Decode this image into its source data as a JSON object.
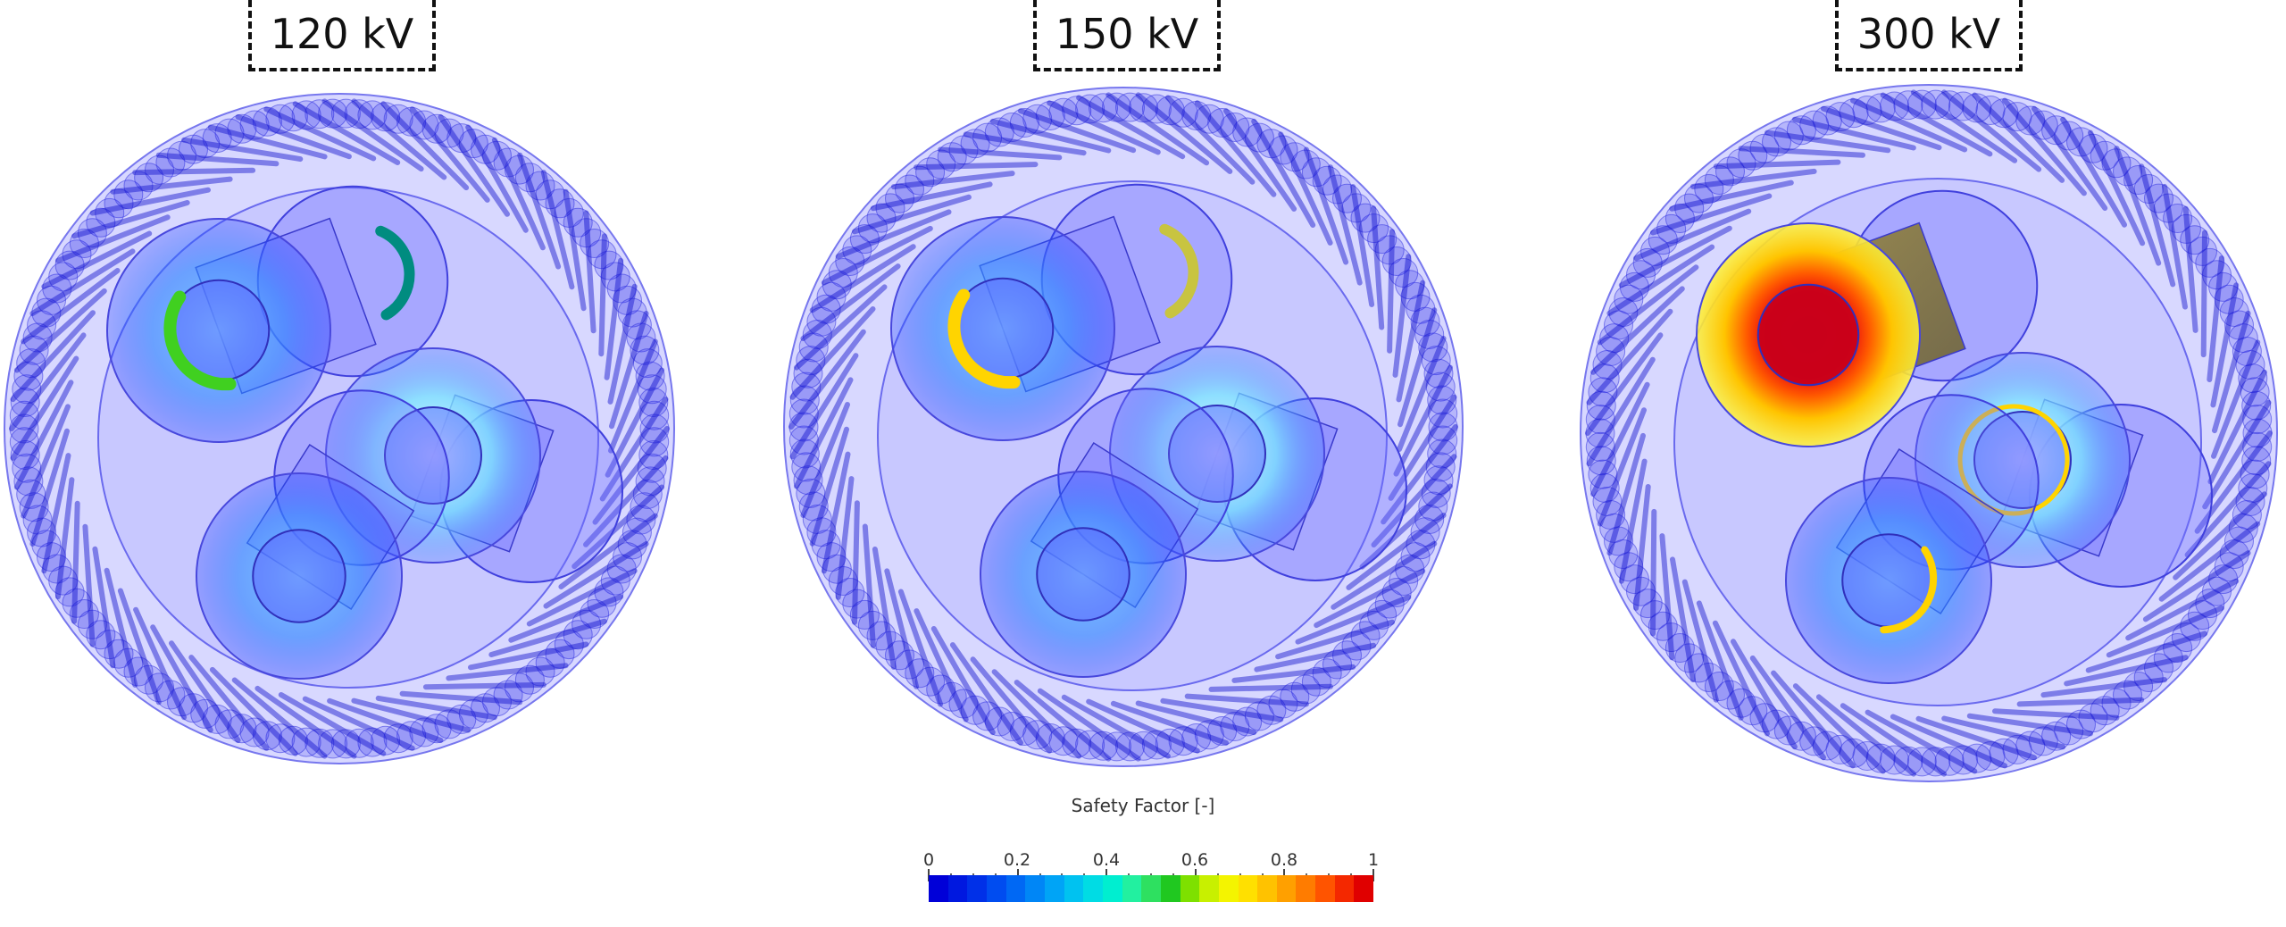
{
  "panels": [
    {
      "voltage_label": "120 kV"
    },
    {
      "voltage_label": "150 kV"
    },
    {
      "voltage_label": "300 kV"
    }
  ],
  "legend": {
    "title": "Safety Factor [-]",
    "ticks": [
      "0",
      "0.2",
      "0.4",
      "0.6",
      "0.8",
      "1"
    ],
    "colors": [
      "#0000d8",
      "#0018e0",
      "#0030e8",
      "#004cf0",
      "#0068f4",
      "#0086f6",
      "#00a4f6",
      "#00c2f0",
      "#00dce4",
      "#00eed0",
      "#22f0a0",
      "#2ee060",
      "#20c820",
      "#7ee000",
      "#c8f000",
      "#f4f400",
      "#ffe000",
      "#ffc200",
      "#ffa000",
      "#ff7c00",
      "#ff5400",
      "#f42800",
      "#e00000"
    ]
  },
  "colors": {
    "armour": "#1e1ee8",
    "sheath": "#6a6aff",
    "hot_red": "#e00010",
    "hot_yellow": "#ffd400",
    "hot_green": "#40d020",
    "hot_teal": "#008c80",
    "olive_tube": "#8a7a3a"
  }
}
